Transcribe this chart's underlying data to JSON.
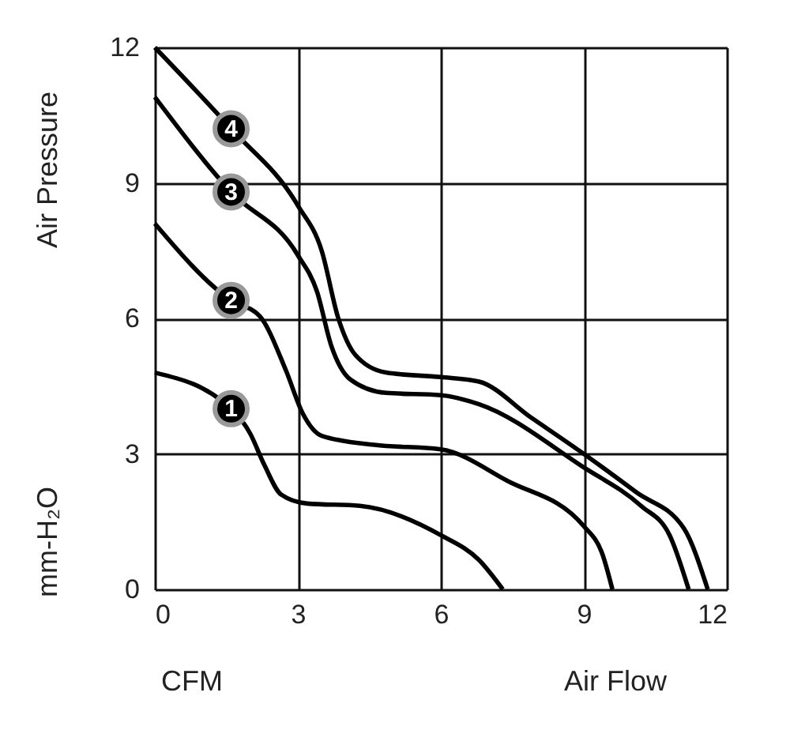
{
  "chart_data": {
    "type": "line",
    "xlabel": "Air Flow",
    "ylabel": "Air Pressure",
    "annotations": [
      "mm-H₂O",
      "CFM"
    ],
    "xlim": [
      0,
      12
    ],
    "ylim": [
      0,
      12
    ],
    "xticks": [
      0,
      3,
      6,
      9,
      12
    ],
    "yticks": [
      0,
      3,
      6,
      9,
      12
    ],
    "grid": true,
    "series": [
      {
        "name": "1",
        "color": "#000000",
        "x": [
          0,
          1.6,
          2.0,
          2.3,
          2.65,
          3.2,
          4.3,
          6,
          6.8,
          7.3
        ],
        "values": [
          4.8,
          4.0,
          3.45,
          2.75,
          2.1,
          1.9,
          1.85,
          1.2,
          0.65,
          0
        ]
      },
      {
        "name": "2",
        "color": "#000000",
        "x": [
          0,
          1.6,
          2.2,
          2.75,
          3.1,
          3.5,
          4.6,
          6,
          7.4,
          9,
          9.4,
          9.6
        ],
        "values": [
          8.1,
          6.4,
          6.05,
          4.85,
          3.9,
          3.4,
          3.2,
          3.1,
          2.4,
          1.4,
          0.75,
          0
        ]
      },
      {
        "name": "3",
        "color": "#000000",
        "x": [
          0,
          1.6,
          3,
          3.4,
          3.7,
          4.1,
          4.85,
          6,
          6.8,
          9,
          10.2,
          10.8,
          11.2
        ],
        "values": [
          10.9,
          8.8,
          7.4,
          6.6,
          5.4,
          4.65,
          4.35,
          4.3,
          4.1,
          2.7,
          1.85,
          1.2,
          0
        ]
      },
      {
        "name": "4",
        "color": "#000000",
        "x": [
          0,
          1.6,
          3,
          3.5,
          3.85,
          4.2,
          4.85,
          6,
          6.8,
          7.9,
          9,
          10.1,
          11.1,
          11.6
        ],
        "values": [
          12,
          10.2,
          8.5,
          7.5,
          6.0,
          5.2,
          4.8,
          4.7,
          4.6,
          3.8,
          3.0,
          2.15,
          1.35,
          0
        ]
      }
    ]
  }
}
